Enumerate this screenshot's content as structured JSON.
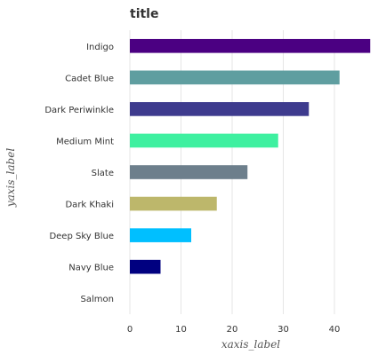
{
  "chart_data": {
    "type": "bar",
    "orientation": "horizontal",
    "title": "title",
    "xlabel": "xaxis_label",
    "ylabel": "yaxis_label",
    "categories": [
      "Indigo",
      "Cadet Blue",
      "Dark Periwinkle",
      "Medium Mint",
      "Slate",
      "Dark Khaki",
      "Deep Sky Blue",
      "Navy Blue",
      "Salmon"
    ],
    "values": [
      47,
      41,
      35,
      29,
      23,
      17,
      12,
      6,
      0
    ],
    "colors": [
      "#4B0082",
      "#5F9EA0",
      "#3E3B8E",
      "#3EF0A0",
      "#6D7F8C",
      "#BDB76B",
      "#00BFFF",
      "#000080",
      "#FA8072"
    ],
    "xlim": [
      0,
      48
    ],
    "xticks": [
      0,
      10,
      20,
      30,
      40
    ],
    "grid": true
  }
}
